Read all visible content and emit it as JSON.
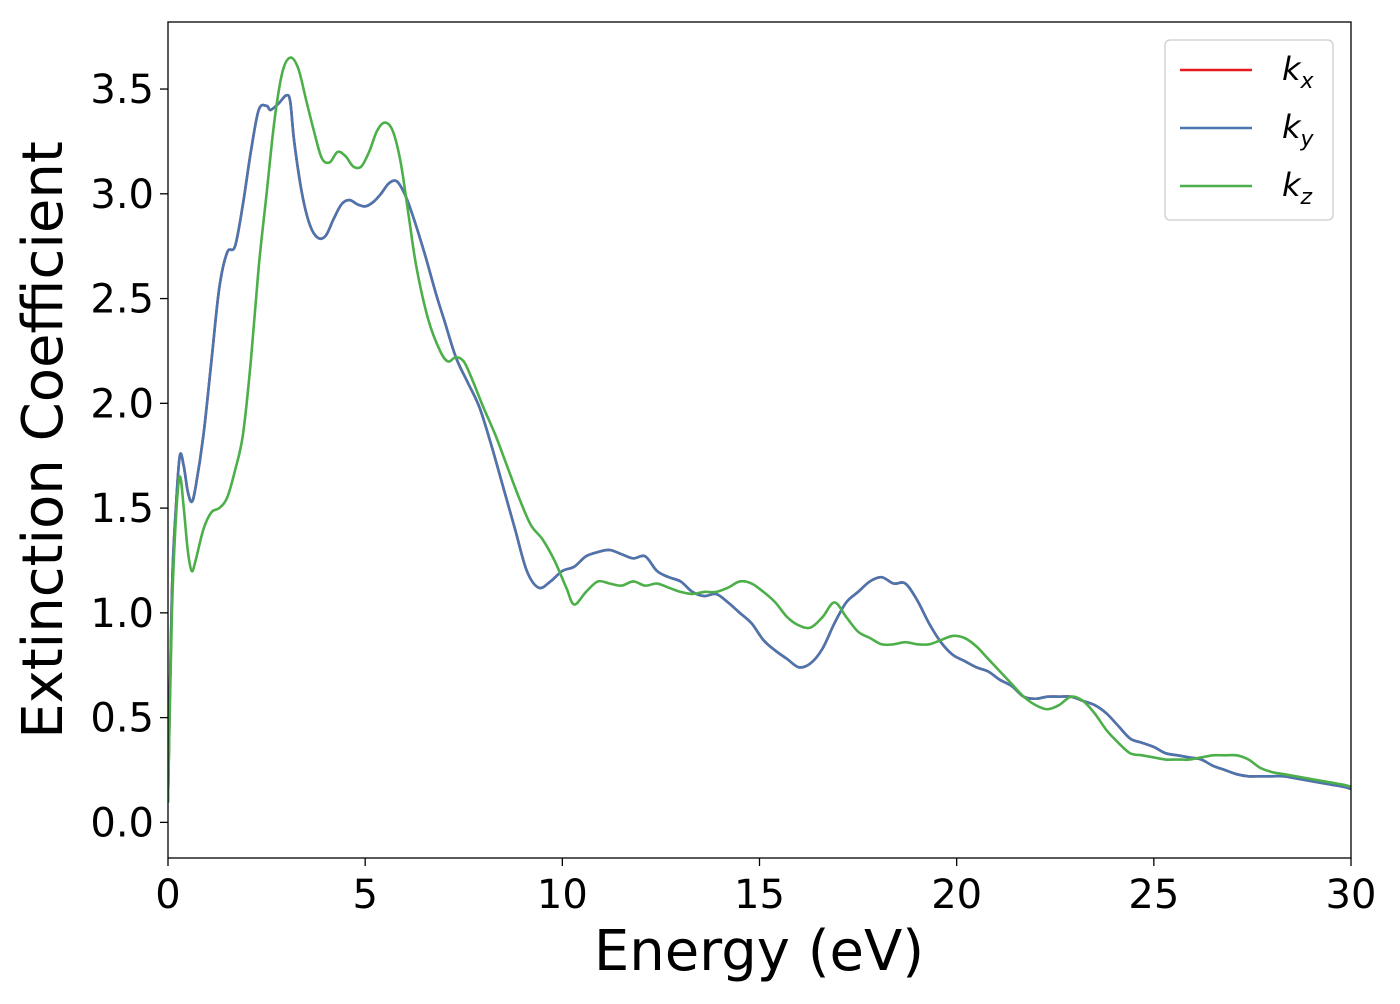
{
  "chart_data": {
    "type": "line",
    "title": "",
    "xlabel": "Energy (eV)",
    "ylabel": "Extinction Coefficient",
    "xlim": [
      0,
      30
    ],
    "ylim": [
      -0.17,
      3.82
    ],
    "xticks": [
      0,
      5,
      10,
      15,
      20,
      25,
      30
    ],
    "yticks": [
      0.0,
      0.5,
      1.0,
      1.5,
      2.0,
      2.5,
      3.0,
      3.5
    ],
    "xtick_labels": [
      "0",
      "5",
      "10",
      "15",
      "20",
      "25",
      "30"
    ],
    "ytick_labels": [
      "0.0",
      "0.5",
      "1.0",
      "1.5",
      "2.0",
      "2.5",
      "3.0",
      "3.5"
    ],
    "grid": false,
    "legend_position": "top-right",
    "series": [
      {
        "name": "k_x",
        "label_base": "k",
        "label_sub": "x",
        "color": "#e41a1c",
        "x": [
          0,
          0.1,
          0.2,
          0.3,
          0.4,
          0.5,
          0.6,
          0.7,
          0.9,
          1.1,
          1.3,
          1.5,
          1.7,
          1.9,
          2.1,
          2.3,
          2.5,
          2.6,
          2.8,
          3.0,
          3.1,
          3.2,
          3.4,
          3.6,
          3.8,
          4.0,
          4.2,
          4.4,
          4.6,
          4.8,
          5.0,
          5.2,
          5.4,
          5.6,
          5.8,
          6.0,
          6.2,
          6.5,
          6.8,
          7.0,
          7.3,
          7.6,
          7.9,
          8.2,
          8.5,
          8.8,
          9.1,
          9.4,
          9.7,
          10.0,
          10.3,
          10.6,
          10.9,
          11.2,
          11.5,
          11.8,
          12.1,
          12.4,
          12.7,
          13.0,
          13.3,
          13.6,
          13.9,
          14.2,
          14.5,
          14.8,
          15.1,
          15.4,
          15.7,
          16.0,
          16.3,
          16.6,
          16.9,
          17.2,
          17.5,
          17.8,
          18.1,
          18.4,
          18.7,
          19.0,
          19.3,
          19.6,
          19.9,
          20.2,
          20.5,
          20.8,
          21.1,
          21.4,
          21.7,
          22.0,
          22.3,
          22.6,
          22.9,
          23.2,
          23.5,
          23.8,
          24.1,
          24.4,
          24.7,
          25.0,
          25.3,
          25.6,
          25.9,
          26.2,
          26.5,
          26.8,
          27.1,
          27.4,
          27.7,
          28.0,
          28.3,
          28.6,
          28.9,
          29.2,
          29.5,
          29.8,
          30.0
        ],
        "y": [
          0.1,
          1.1,
          1.5,
          1.75,
          1.7,
          1.58,
          1.53,
          1.6,
          1.85,
          2.2,
          2.55,
          2.72,
          2.75,
          2.95,
          3.2,
          3.4,
          3.42,
          3.4,
          3.43,
          3.47,
          3.44,
          3.25,
          3.0,
          2.85,
          2.79,
          2.8,
          2.88,
          2.95,
          2.97,
          2.95,
          2.94,
          2.96,
          3.0,
          3.05,
          3.06,
          3.0,
          2.9,
          2.72,
          2.52,
          2.4,
          2.22,
          2.1,
          1.98,
          1.8,
          1.6,
          1.4,
          1.2,
          1.12,
          1.15,
          1.2,
          1.22,
          1.27,
          1.29,
          1.3,
          1.28,
          1.26,
          1.27,
          1.2,
          1.17,
          1.15,
          1.1,
          1.08,
          1.09,
          1.05,
          1.0,
          0.95,
          0.87,
          0.82,
          0.78,
          0.74,
          0.76,
          0.83,
          0.95,
          1.05,
          1.1,
          1.15,
          1.17,
          1.14,
          1.14,
          1.06,
          0.95,
          0.86,
          0.8,
          0.77,
          0.74,
          0.72,
          0.68,
          0.65,
          0.6,
          0.59,
          0.6,
          0.6,
          0.6,
          0.58,
          0.56,
          0.52,
          0.46,
          0.4,
          0.38,
          0.36,
          0.33,
          0.32,
          0.31,
          0.3,
          0.27,
          0.25,
          0.23,
          0.22,
          0.22,
          0.22,
          0.22,
          0.21,
          0.2,
          0.19,
          0.18,
          0.17,
          0.16
        ]
      },
      {
        "name": "k_y",
        "label_base": "k",
        "label_sub": "y",
        "color": "#4a76b0",
        "x": [
          0,
          0.1,
          0.2,
          0.3,
          0.4,
          0.5,
          0.6,
          0.7,
          0.9,
          1.1,
          1.3,
          1.5,
          1.7,
          1.9,
          2.1,
          2.3,
          2.5,
          2.6,
          2.8,
          3.0,
          3.1,
          3.2,
          3.4,
          3.6,
          3.8,
          4.0,
          4.2,
          4.4,
          4.6,
          4.8,
          5.0,
          5.2,
          5.4,
          5.6,
          5.8,
          6.0,
          6.2,
          6.5,
          6.8,
          7.0,
          7.3,
          7.6,
          7.9,
          8.2,
          8.5,
          8.8,
          9.1,
          9.4,
          9.7,
          10.0,
          10.3,
          10.6,
          10.9,
          11.2,
          11.5,
          11.8,
          12.1,
          12.4,
          12.7,
          13.0,
          13.3,
          13.6,
          13.9,
          14.2,
          14.5,
          14.8,
          15.1,
          15.4,
          15.7,
          16.0,
          16.3,
          16.6,
          16.9,
          17.2,
          17.5,
          17.8,
          18.1,
          18.4,
          18.7,
          19.0,
          19.3,
          19.6,
          19.9,
          20.2,
          20.5,
          20.8,
          21.1,
          21.4,
          21.7,
          22.0,
          22.3,
          22.6,
          22.9,
          23.2,
          23.5,
          23.8,
          24.1,
          24.4,
          24.7,
          25.0,
          25.3,
          25.6,
          25.9,
          26.2,
          26.5,
          26.8,
          27.1,
          27.4,
          27.7,
          28.0,
          28.3,
          28.6,
          28.9,
          29.2,
          29.5,
          29.8,
          30.0
        ],
        "y": [
          0.1,
          1.1,
          1.5,
          1.75,
          1.7,
          1.58,
          1.53,
          1.6,
          1.85,
          2.2,
          2.55,
          2.72,
          2.75,
          2.95,
          3.2,
          3.4,
          3.42,
          3.4,
          3.43,
          3.47,
          3.44,
          3.25,
          3.0,
          2.85,
          2.79,
          2.8,
          2.88,
          2.95,
          2.97,
          2.95,
          2.94,
          2.96,
          3.0,
          3.05,
          3.06,
          3.0,
          2.9,
          2.72,
          2.52,
          2.4,
          2.22,
          2.1,
          1.98,
          1.8,
          1.6,
          1.4,
          1.2,
          1.12,
          1.15,
          1.2,
          1.22,
          1.27,
          1.29,
          1.3,
          1.28,
          1.26,
          1.27,
          1.2,
          1.17,
          1.15,
          1.1,
          1.08,
          1.09,
          1.05,
          1.0,
          0.95,
          0.87,
          0.82,
          0.78,
          0.74,
          0.76,
          0.83,
          0.95,
          1.05,
          1.1,
          1.15,
          1.17,
          1.14,
          1.14,
          1.06,
          0.95,
          0.86,
          0.8,
          0.77,
          0.74,
          0.72,
          0.68,
          0.65,
          0.6,
          0.59,
          0.6,
          0.6,
          0.6,
          0.58,
          0.56,
          0.52,
          0.46,
          0.4,
          0.38,
          0.36,
          0.33,
          0.32,
          0.31,
          0.3,
          0.27,
          0.25,
          0.23,
          0.22,
          0.22,
          0.22,
          0.22,
          0.21,
          0.2,
          0.19,
          0.18,
          0.17,
          0.16
        ]
      },
      {
        "name": "k_z",
        "label_base": "k",
        "label_sub": "z",
        "color": "#4daf4a",
        "x": [
          0,
          0.1,
          0.2,
          0.3,
          0.4,
          0.5,
          0.6,
          0.7,
          0.9,
          1.1,
          1.3,
          1.5,
          1.7,
          1.9,
          2.1,
          2.3,
          2.5,
          2.7,
          2.9,
          3.1,
          3.3,
          3.5,
          3.7,
          3.9,
          4.1,
          4.3,
          4.5,
          4.7,
          4.9,
          5.1,
          5.3,
          5.5,
          5.7,
          5.9,
          6.1,
          6.3,
          6.6,
          6.9,
          7.1,
          7.3,
          7.5,
          7.7,
          8.0,
          8.3,
          8.6,
          8.9,
          9.2,
          9.5,
          9.8,
          10.1,
          10.3,
          10.6,
          10.9,
          11.2,
          11.5,
          11.8,
          12.1,
          12.4,
          12.7,
          13.0,
          13.3,
          13.6,
          13.9,
          14.2,
          14.5,
          14.8,
          15.1,
          15.4,
          15.7,
          16.0,
          16.3,
          16.6,
          16.9,
          17.2,
          17.5,
          17.8,
          18.1,
          18.4,
          18.7,
          19.0,
          19.3,
          19.6,
          19.9,
          20.2,
          20.5,
          20.8,
          21.1,
          21.4,
          21.7,
          22.0,
          22.3,
          22.6,
          22.9,
          23.2,
          23.5,
          23.8,
          24.1,
          24.4,
          24.7,
          25.0,
          25.3,
          25.6,
          25.9,
          26.2,
          26.5,
          26.8,
          27.1,
          27.4,
          27.7,
          28.0,
          28.3,
          28.6,
          28.9,
          29.2,
          29.5,
          29.8,
          30.0
        ],
        "y": [
          0.1,
          1.0,
          1.45,
          1.65,
          1.5,
          1.3,
          1.2,
          1.25,
          1.4,
          1.48,
          1.5,
          1.55,
          1.68,
          1.85,
          2.2,
          2.65,
          3.0,
          3.35,
          3.58,
          3.65,
          3.6,
          3.45,
          3.3,
          3.17,
          3.15,
          3.2,
          3.18,
          3.13,
          3.13,
          3.2,
          3.3,
          3.34,
          3.3,
          3.15,
          2.9,
          2.65,
          2.4,
          2.25,
          2.2,
          2.22,
          2.2,
          2.12,
          1.98,
          1.85,
          1.7,
          1.55,
          1.42,
          1.35,
          1.25,
          1.12,
          1.04,
          1.1,
          1.15,
          1.14,
          1.13,
          1.15,
          1.13,
          1.14,
          1.12,
          1.1,
          1.09,
          1.1,
          1.1,
          1.12,
          1.15,
          1.14,
          1.1,
          1.05,
          0.98,
          0.94,
          0.93,
          0.98,
          1.05,
          0.98,
          0.91,
          0.88,
          0.85,
          0.85,
          0.86,
          0.85,
          0.85,
          0.87,
          0.89,
          0.88,
          0.84,
          0.78,
          0.72,
          0.66,
          0.6,
          0.56,
          0.54,
          0.56,
          0.6,
          0.58,
          0.52,
          0.44,
          0.38,
          0.33,
          0.32,
          0.31,
          0.3,
          0.3,
          0.3,
          0.31,
          0.32,
          0.32,
          0.32,
          0.3,
          0.26,
          0.24,
          0.23,
          0.22,
          0.21,
          0.2,
          0.19,
          0.18,
          0.17
        ]
      }
    ]
  }
}
